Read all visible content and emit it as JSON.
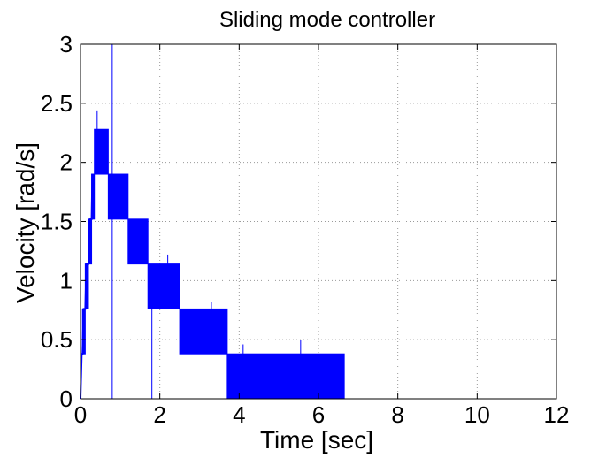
{
  "chart_data": {
    "type": "line",
    "title": "Sliding mode controller",
    "xlabel": "Time [sec]",
    "ylabel": "Velocity [rad/s]",
    "xlim": [
      0,
      12
    ],
    "ylim": [
      0,
      3
    ],
    "xticks": [
      0,
      2,
      4,
      6,
      8,
      10,
      12
    ],
    "yticks": [
      0,
      0.5,
      1,
      1.5,
      2,
      2.5,
      3
    ],
    "xtick_labels": [
      "0",
      "2",
      "4",
      "6",
      "8",
      "10",
      "12"
    ],
    "ytick_labels": [
      "0",
      "0.5",
      "1",
      "1.5",
      "2",
      "2.5",
      "3"
    ],
    "grid": true,
    "legend": "none",
    "color": "#0000ff",
    "series": [
      {
        "type": "line",
        "x": [
          0,
          0.03,
          0.05,
          0.08,
          0.12,
          0.15,
          0.2,
          0.25,
          0.28,
          0.3
        ],
        "y": [
          0,
          0.38,
          0.38,
          0.76,
          0.76,
          1.14,
          1.14,
          1.52,
          1.52,
          1.9
        ]
      }
    ],
    "bands": [
      {
        "x_start": 0.05,
        "x_end": 0.12,
        "y_low": 0.38,
        "y_high": 0.76
      },
      {
        "x_start": 0.12,
        "x_end": 0.2,
        "y_low": 0.76,
        "y_high": 1.14
      },
      {
        "x_start": 0.2,
        "x_end": 0.28,
        "y_low": 1.14,
        "y_high": 1.52
      },
      {
        "x_start": 0.28,
        "x_end": 0.35,
        "y_low": 1.52,
        "y_high": 1.9
      },
      {
        "x_start": 0.35,
        "x_end": 0.7,
        "y_low": 1.9,
        "y_high": 2.28
      },
      {
        "x_start": 0.7,
        "x_end": 1.2,
        "y_low": 1.52,
        "y_high": 1.9
      },
      {
        "x_start": 1.2,
        "x_end": 1.7,
        "y_low": 1.14,
        "y_high": 1.52
      },
      {
        "x_start": 1.7,
        "x_end": 2.5,
        "y_low": 0.76,
        "y_high": 1.14
      },
      {
        "x_start": 2.5,
        "x_end": 3.7,
        "y_low": 0.38,
        "y_high": 0.76
      },
      {
        "x_start": 3.7,
        "x_end": 6.65,
        "y_low": 0,
        "y_high": 0.38
      }
    ],
    "spikes": [
      {
        "x": 0.8,
        "y_low": 0,
        "y_high": 3
      },
      {
        "x": 1.8,
        "y_low": 0,
        "y_high": 0.95
      },
      {
        "x": 0.42,
        "y_low": 2.28,
        "y_high": 2.44
      },
      {
        "x": 1.55,
        "y_low": 1.52,
        "y_high": 1.62
      },
      {
        "x": 2.2,
        "y_low": 1.14,
        "y_high": 1.22
      },
      {
        "x": 3.3,
        "y_low": 0.76,
        "y_high": 0.82
      },
      {
        "x": 4.1,
        "y_low": 0.38,
        "y_high": 0.46
      },
      {
        "x": 5.55,
        "y_low": 0.38,
        "y_high": 0.5
      }
    ]
  }
}
